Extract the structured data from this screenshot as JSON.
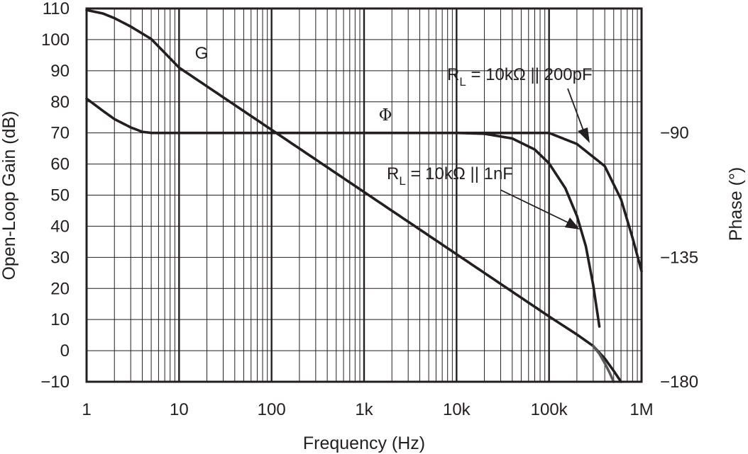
{
  "chart_data": {
    "type": "line",
    "xlabel": "Frequency (Hz)",
    "ylabel": "Open-Loop Gain (dB)",
    "y2label": "Phase (°)",
    "xscale": "log",
    "xlim": [
      1,
      1000000
    ],
    "ylim": [
      -10,
      110
    ],
    "y2lim": [
      -180,
      -45
    ],
    "grid": true,
    "x_ticks": [
      {
        "value": 1,
        "label": "1"
      },
      {
        "value": 10,
        "label": "10"
      },
      {
        "value": 100,
        "label": "100"
      },
      {
        "value": 1000,
        "label": "1k"
      },
      {
        "value": 10000,
        "label": "10k"
      },
      {
        "value": 100000,
        "label": "100k"
      },
      {
        "value": 1000000,
        "label": "1M"
      }
    ],
    "y_ticks": [
      {
        "value": 110,
        "label": "110"
      },
      {
        "value": 100,
        "label": "100"
      },
      {
        "value": 90,
        "label": "90"
      },
      {
        "value": 80,
        "label": "80"
      },
      {
        "value": 70,
        "label": "70"
      },
      {
        "value": 60,
        "label": "60"
      },
      {
        "value": 50,
        "label": "50"
      },
      {
        "value": 40,
        "label": "40"
      },
      {
        "value": 30,
        "label": "30"
      },
      {
        "value": 20,
        "label": "20"
      },
      {
        "value": 10,
        "label": "10"
      },
      {
        "value": 0,
        "label": "0"
      },
      {
        "value": -10,
        "label": "−10"
      }
    ],
    "y2_ticks": [
      {
        "value": -90,
        "label": "−90"
      },
      {
        "value": -135,
        "label": "−135"
      },
      {
        "value": -180,
        "label": "−180"
      }
    ],
    "series": [
      {
        "name": "Gain",
        "axis": "left",
        "points": [
          [
            1,
            109.5
          ],
          [
            1.5,
            108.4
          ],
          [
            2,
            106.9
          ],
          [
            3,
            104.2
          ],
          [
            5,
            100.2
          ],
          [
            10,
            91
          ],
          [
            100,
            71
          ],
          [
            1000,
            51
          ],
          [
            10000,
            31
          ],
          [
            100000,
            11
          ],
          [
            200000,
            5.2
          ],
          [
            300000,
            1.5
          ],
          [
            400000,
            -2.5
          ],
          [
            500000,
            -6.5
          ],
          [
            600000,
            -10
          ]
        ]
      },
      {
        "name": "Gain (RL = 10kΩ || 1nF)",
        "axis": "left",
        "points": [
          [
            300000,
            1.5
          ],
          [
            350000,
            -1
          ],
          [
            400000,
            -4
          ],
          [
            450000,
            -7
          ],
          [
            500000,
            -10
          ]
        ]
      },
      {
        "name": "Phase (RL = 10kΩ || 200pF)",
        "axis": "right",
        "points": [
          [
            1,
            -77.6
          ],
          [
            1.5,
            -82
          ],
          [
            2,
            -85
          ],
          [
            3,
            -88
          ],
          [
            4,
            -89.6
          ],
          [
            5,
            -90
          ],
          [
            10000,
            -90
          ],
          [
            100000,
            -90
          ],
          [
            200000,
            -94
          ],
          [
            400000,
            -102
          ],
          [
            600000,
            -114
          ],
          [
            800000,
            -128
          ],
          [
            1000000,
            -140
          ]
        ]
      },
      {
        "name": "Phase (RL = 10kΩ || 1nF)",
        "axis": "right",
        "points": [
          [
            10000,
            -90
          ],
          [
            20000,
            -90.3
          ],
          [
            40000,
            -92
          ],
          [
            70000,
            -96
          ],
          [
            100000,
            -101
          ],
          [
            150000,
            -110
          ],
          [
            200000,
            -120
          ],
          [
            250000,
            -131
          ],
          [
            300000,
            -145
          ],
          [
            350000,
            -160
          ]
        ]
      }
    ],
    "annotations": {
      "gain_label": "G",
      "phase_label": "Φ",
      "rl_prefix": "R",
      "rl_subscript": "L",
      "rl_200pf": " = 10kΩ || 200pF",
      "rl_1nf": " = 10kΩ || 1nF"
    }
  }
}
